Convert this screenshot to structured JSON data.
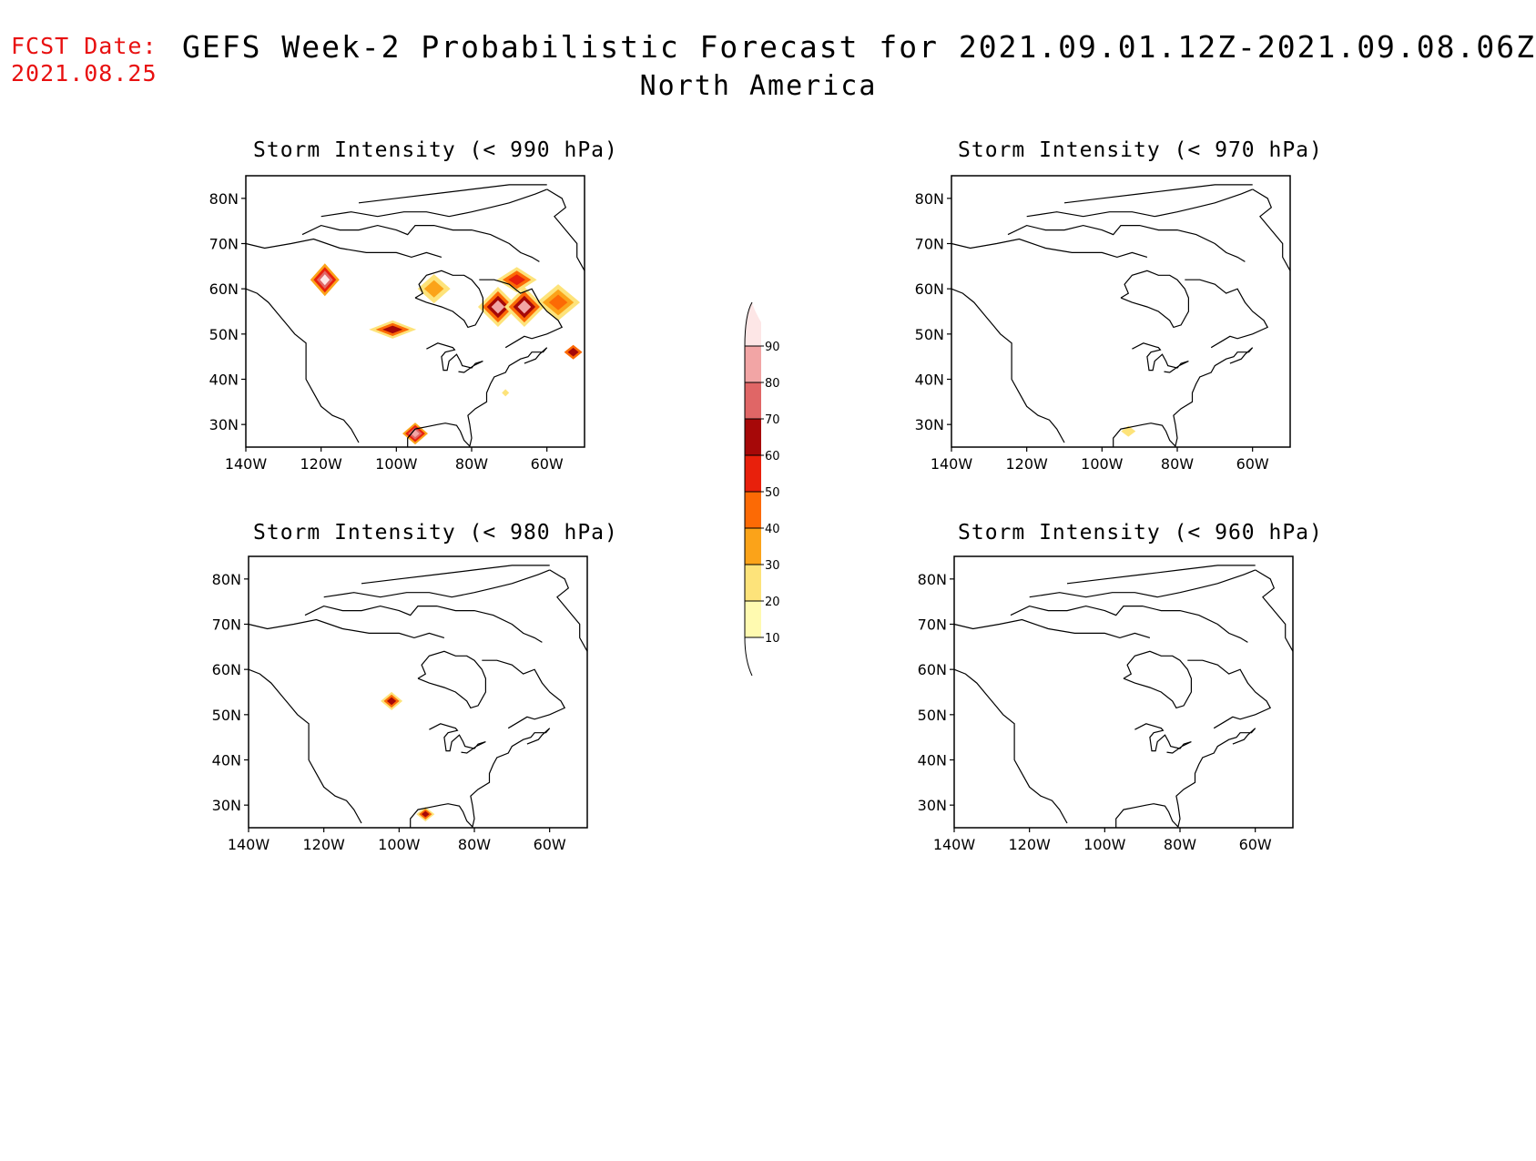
{
  "forecast_date_label": "FCST Date:",
  "forecast_date": "2021.08.25",
  "title": "GEFS Week-2 Probabilistic Forecast for 2021.09.01.12Z-2021.09.08.06Z",
  "subtitle": "North America",
  "panels": [
    {
      "title": "Storm Intensity (< 990 hPa)"
    },
    {
      "title": "Storm Intensity (< 970 hPa)"
    },
    {
      "title": "Storm Intensity (< 980 hPa)"
    },
    {
      "title": "Storm Intensity (< 960 hPa)"
    }
  ],
  "axes": {
    "lat_labels": [
      "80N",
      "70N",
      "60N",
      "50N",
      "40N",
      "30N"
    ],
    "lon_labels": [
      "140W",
      "120W",
      "100W",
      "80W",
      "60W"
    ]
  },
  "colorbar": {
    "levels": [
      "10",
      "20",
      "30",
      "40",
      "50",
      "60",
      "70",
      "80",
      "90"
    ],
    "colors": [
      "#fffab0",
      "#fde37a",
      "#fba319",
      "#fc6a05",
      "#e8200c",
      "#a60808",
      "#e06666",
      "#f2a5a5",
      "#fde6e6"
    ]
  }
}
